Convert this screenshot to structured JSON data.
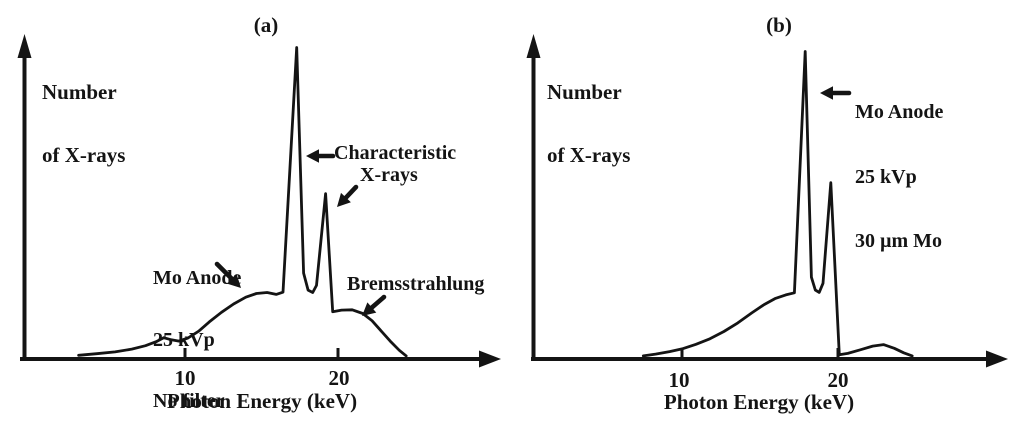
{
  "figure": {
    "ink_color": "#141414",
    "bg_color": "#ffffff",
    "panel_a": {
      "tag": "(a)",
      "y_axis_label_line1": "Number",
      "y_axis_label_line2": "of X-rays",
      "x_axis_label": "Photon Energy (keV)",
      "tick_10": "10",
      "tick_20": "20",
      "ann_characteristic_line1": "Characteristic",
      "ann_characteristic_line2": "X-rays",
      "ann_source_line1": "Mo Anode",
      "ann_source_line2": "25 kVp",
      "ann_source_line3": "No filter",
      "ann_bremsstrahlung": "Bremsstrahlung"
    },
    "panel_b": {
      "tag": "(b)",
      "y_axis_label_line1": "Number",
      "y_axis_label_line2": "of X-rays",
      "x_axis_label": "Photon Energy (keV)",
      "tick_10": "10",
      "tick_20": "20",
      "ann_source_line1": "Mo Anode",
      "ann_source_line2": "25 kVp",
      "ann_source_line3": "30 µm Mo"
    },
    "icons": {
      "characteristic_arrow_left": "←",
      "characteristic_arrow_down_left": "↙",
      "no_filter_arrow_down_right": "↘",
      "bremsstrahlung_arrow_down_left": "↙",
      "mo_anode_arrow_left": "←"
    }
  },
  "chart_data": [
    {
      "panel": "a",
      "type": "line",
      "title": "(a)",
      "xlabel": "Photon Energy (keV)",
      "ylabel": "Number of X-rays",
      "x_ticks": [
        10,
        20
      ],
      "xlim": [
        0,
        30
      ],
      "ylim": [
        0,
        1
      ],
      "grid": false,
      "legend": "none",
      "peaks_keV": {
        "k_alpha": 17.4,
        "k_beta": 19.3
      },
      "annotations": [
        "Characteristic X-rays",
        "Mo Anode 25 kVp No filter",
        "Bremsstrahlung"
      ],
      "series": [
        {
          "name": "Mo Anode 25 kVp No filter",
          "x_unit": "keV",
          "y_unit": "relative number of X-rays",
          "points": [
            [
              3.0,
              0.004
            ],
            [
              4.2,
              0.009
            ],
            [
              5.4,
              0.015
            ],
            [
              6.5,
              0.024
            ],
            [
              7.4,
              0.035
            ],
            [
              8.1,
              0.048
            ],
            [
              8.6,
              0.061
            ],
            [
              9.1,
              0.054
            ],
            [
              9.6,
              0.05
            ],
            [
              10.2,
              0.06
            ],
            [
              10.9,
              0.082
            ],
            [
              11.6,
              0.112
            ],
            [
              12.4,
              0.143
            ],
            [
              13.2,
              0.17
            ],
            [
              14.0,
              0.192
            ],
            [
              14.7,
              0.204
            ],
            [
              15.4,
              0.207
            ],
            [
              16.0,
              0.201
            ],
            [
              16.45,
              0.208
            ],
            [
              17.35,
              1.0
            ],
            [
              17.8,
              0.27
            ],
            [
              18.1,
              0.215
            ],
            [
              18.4,
              0.207
            ],
            [
              18.65,
              0.23
            ],
            [
              19.25,
              0.527
            ],
            [
              19.72,
              0.145
            ],
            [
              20.3,
              0.15
            ],
            [
              21.0,
              0.151
            ],
            [
              21.7,
              0.139
            ],
            [
              22.3,
              0.116
            ],
            [
              22.9,
              0.083
            ],
            [
              23.5,
              0.05
            ],
            [
              24.1,
              0.02
            ],
            [
              24.55,
              0.002
            ]
          ]
        }
      ]
    },
    {
      "panel": "b",
      "type": "line",
      "title": "(b)",
      "xlabel": "Photon Energy (keV)",
      "ylabel": "Number of X-rays",
      "x_ticks": [
        10,
        20
      ],
      "xlim": [
        0,
        30
      ],
      "ylim": [
        0,
        1
      ],
      "grid": false,
      "legend": "none",
      "peaks_keV": {
        "k_alpha": 17.9,
        "k_beta": 19.6
      },
      "annotations": [
        "Mo Anode 25 kVp 30 µm Mo"
      ],
      "series": [
        {
          "name": "Mo Anode 25 kVp with 30 µm Mo filter",
          "x_unit": "keV",
          "y_unit": "relative number of X-rays",
          "points": [
            [
              7.5,
              0.002
            ],
            [
              8.3,
              0.008
            ],
            [
              9.2,
              0.016
            ],
            [
              10.0,
              0.025
            ],
            [
              10.9,
              0.04
            ],
            [
              11.8,
              0.058
            ],
            [
              12.7,
              0.082
            ],
            [
              13.6,
              0.11
            ],
            [
              14.5,
              0.143
            ],
            [
              15.3,
              0.17
            ],
            [
              16.0,
              0.19
            ],
            [
              16.7,
              0.202
            ],
            [
              17.25,
              0.209
            ],
            [
              17.95,
              1.0
            ],
            [
              18.35,
              0.26
            ],
            [
              18.6,
              0.218
            ],
            [
              18.85,
              0.21
            ],
            [
              19.1,
              0.24
            ],
            [
              19.6,
              0.57
            ],
            [
              20.15,
              0.006
            ],
            [
              20.7,
              0.01
            ],
            [
              21.5,
              0.022
            ],
            [
              22.3,
              0.034
            ],
            [
              23.0,
              0.039
            ],
            [
              23.7,
              0.027
            ],
            [
              24.3,
              0.012
            ],
            [
              24.85,
              0.002
            ]
          ]
        }
      ]
    }
  ]
}
